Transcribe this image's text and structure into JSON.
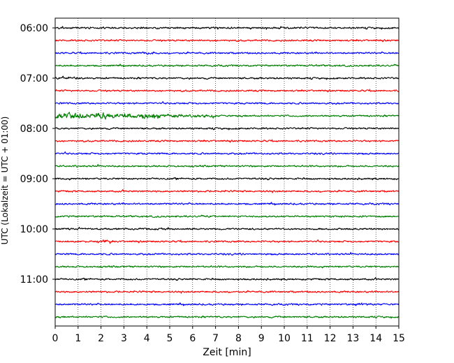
{
  "chart_data": {
    "type": "line",
    "title": "",
    "xlabel": "Zeit  [min]",
    "ylabel": "UTC (Lokalzeit = UTC + 01:00)",
    "xlim": [
      0,
      15
    ],
    "x_ticks": [
      0,
      1,
      2,
      3,
      4,
      5,
      6,
      7,
      8,
      9,
      10,
      11,
      12,
      13,
      14,
      15
    ],
    "x_tick_labels": [
      "0",
      "1",
      "2",
      "3",
      "4",
      "5",
      "6",
      "7",
      "8",
      "9",
      "10",
      "11",
      "12",
      "13",
      "14",
      "15"
    ],
    "y_tick_labels": [
      "06:00",
      "07:00",
      "08:00",
      "09:00",
      "10:00",
      "11:00"
    ],
    "grid": "vertical dotted lines at each minute",
    "trace_colors": [
      "#000000",
      "#ff0000",
      "#0000ff",
      "#007f00"
    ],
    "traces_count": 24,
    "trace_interval_minutes": 15,
    "start_time": "06:00",
    "notes": "Helicorder-style seismogram: each row is a 15-minute trace, colors cycle black/red/blue/green.",
    "events": [
      {
        "row": 7,
        "from_min": 0.0,
        "to_min": 4.6,
        "amplitude": "high"
      },
      {
        "row": 7,
        "from_min": 4.6,
        "to_min": 7.0,
        "amplitude": "medium"
      },
      {
        "row": 4,
        "from_min": 0.3,
        "to_min": 1.2,
        "amplitude": "medium"
      },
      {
        "row": 2,
        "from_min": 3.8,
        "to_min": 4.3,
        "amplitude": "medium"
      },
      {
        "row": 17,
        "from_min": 2.0,
        "to_min": 2.4,
        "amplitude": "medium"
      },
      {
        "row": 22,
        "from_min": 13.1,
        "to_min": 13.4,
        "amplitude": "medium"
      }
    ]
  }
}
